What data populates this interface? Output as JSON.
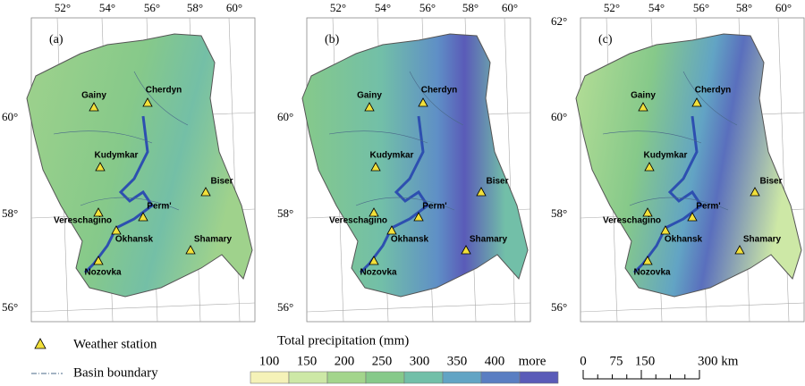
{
  "panels": [
    {
      "label": "(a)"
    },
    {
      "label": "(b)"
    },
    {
      "label": "(c)"
    }
  ],
  "lon_labels": [
    "52°",
    "54°",
    "56°",
    "58°",
    "60°"
  ],
  "lat_labels": [
    "56°",
    "58°",
    "60°",
    "62°"
  ],
  "stations": [
    "Gainy",
    "Cherdyn",
    "Kudymkar",
    "Biser",
    "Vereschagino",
    "Perm'",
    "Okhansk",
    "Shamary",
    "Nozovka"
  ],
  "legend": {
    "station": "Weather station",
    "boundary": "Basin boundary",
    "precip_title": "Total precipitation (mm)",
    "precip_labels": [
      "100",
      "150",
      "200",
      "250",
      "300",
      "350",
      "400",
      "more"
    ],
    "scale_labels": [
      "0",
      "75",
      "150",
      "300 km"
    ]
  }
}
